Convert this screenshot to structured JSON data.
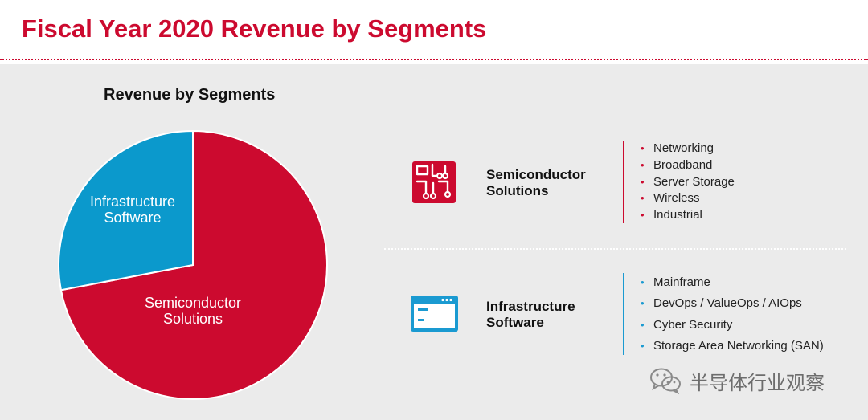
{
  "page": {
    "title": "Fiscal Year 2020 Revenue by Segments"
  },
  "chart_data": {
    "type": "pie",
    "title": "Revenue by Segments",
    "slices": [
      {
        "label": "Semiconductor Solutions",
        "label_lines": [
          "Semiconductor",
          "Solutions"
        ],
        "percent": 72,
        "color": "#cc0a2f"
      },
      {
        "label": "Infrastructure Software",
        "label_lines": [
          "Infrastructure",
          "Software"
        ],
        "percent": 28,
        "color": "#0b99cc"
      }
    ]
  },
  "segments": [
    {
      "name_lines": [
        "Semiconductor",
        "Solutions"
      ],
      "icon": "circuit-chip-icon",
      "accent": "#cc0a2f",
      "items": [
        "Networking",
        "Broadband",
        "Server Storage",
        "Wireless",
        "Industrial"
      ]
    },
    {
      "name_lines": [
        "Infrastructure",
        "Software"
      ],
      "icon": "app-window-icon",
      "accent": "#1a9ad1",
      "items": [
        "Mainframe",
        "DevOps / ValueOps / AIOps",
        "Cyber Security",
        "Storage Area Networking (SAN)"
      ]
    }
  ],
  "watermark": {
    "text": "半导体行业观察",
    "icon": "wechat-icon"
  }
}
